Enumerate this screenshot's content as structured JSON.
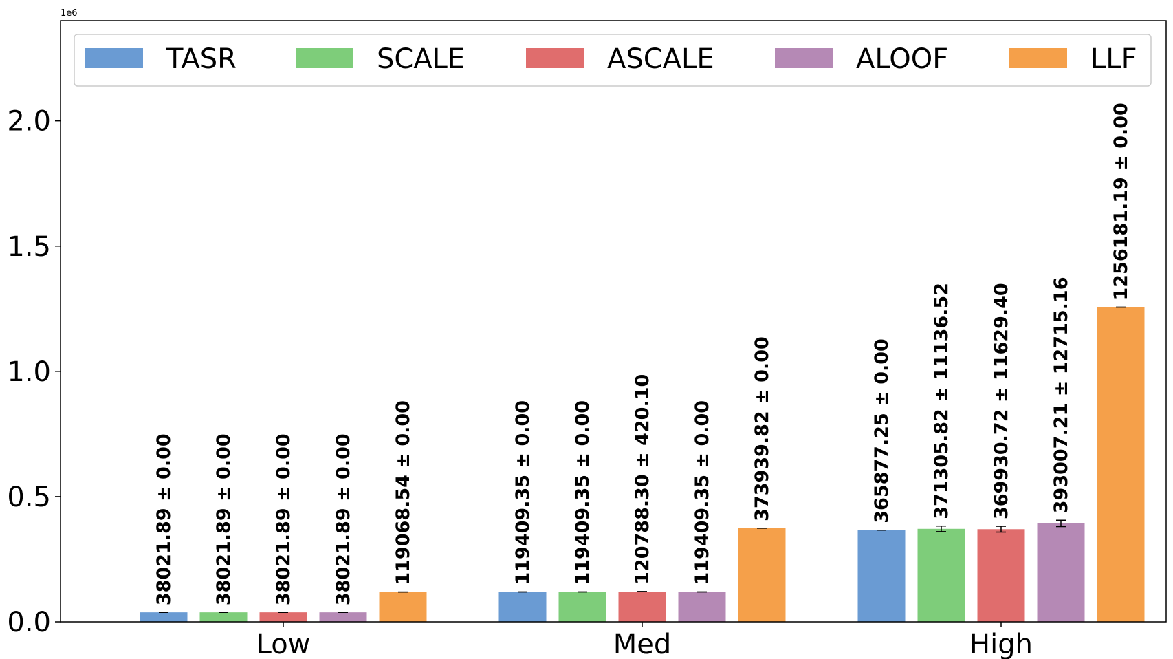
{
  "chart_data": {
    "type": "bar",
    "categories": [
      "Low",
      "Med",
      "High"
    ],
    "ylim": [
      0,
      2400000
    ],
    "yticks": [
      0,
      500000,
      1000000,
      1500000,
      2000000
    ],
    "ytick_labels": [
      "0.0",
      "0.5",
      "1.0",
      "1.5",
      "2.0"
    ],
    "y_offset_text": "1e6",
    "legend_position": "top",
    "grid": false,
    "series": [
      {
        "name": "TASR",
        "color": "#6a9bd3",
        "values": [
          38021.89,
          119409.35,
          365877.25
        ],
        "errors": [
          0,
          0,
          0
        ],
        "labels": [
          "38021.89 ± 0.00",
          "119409.35 ± 0.00",
          "365877.25 ± 0.00"
        ]
      },
      {
        "name": "SCALE",
        "color": "#7ecd7a",
        "values": [
          38021.89,
          119409.35,
          371305.82
        ],
        "errors": [
          0,
          0,
          11136.52
        ],
        "labels": [
          "38021.89 ± 0.00",
          "119409.35 ± 0.00",
          "371305.82 ± 11136.52"
        ]
      },
      {
        "name": "ASCALE",
        "color": "#e06d6d",
        "values": [
          38021.89,
          120788.3,
          369930.72
        ],
        "errors": [
          0,
          420.1,
          11629.4
        ],
        "labels": [
          "38021.89 ± 0.00",
          "120788.30 ± 420.10",
          "369930.72 ± 11629.40"
        ]
      },
      {
        "name": "ALOOF",
        "color": "#b589b5",
        "values": [
          38021.89,
          119409.35,
          393007.21
        ],
        "errors": [
          0,
          0,
          12715.16
        ],
        "labels": [
          "38021.89 ± 0.00",
          "119409.35 ± 0.00",
          "393007.21 ± 12715.16"
        ]
      },
      {
        "name": "LLF",
        "color": "#f5a04a",
        "values": [
          119068.54,
          373939.82,
          1256181.19
        ],
        "errors": [
          0,
          0,
          0
        ],
        "labels": [
          "119068.54 ± 0.00",
          "373939.82 ± 0.00",
          "1256181.19 ± 0.00"
        ]
      }
    ]
  }
}
